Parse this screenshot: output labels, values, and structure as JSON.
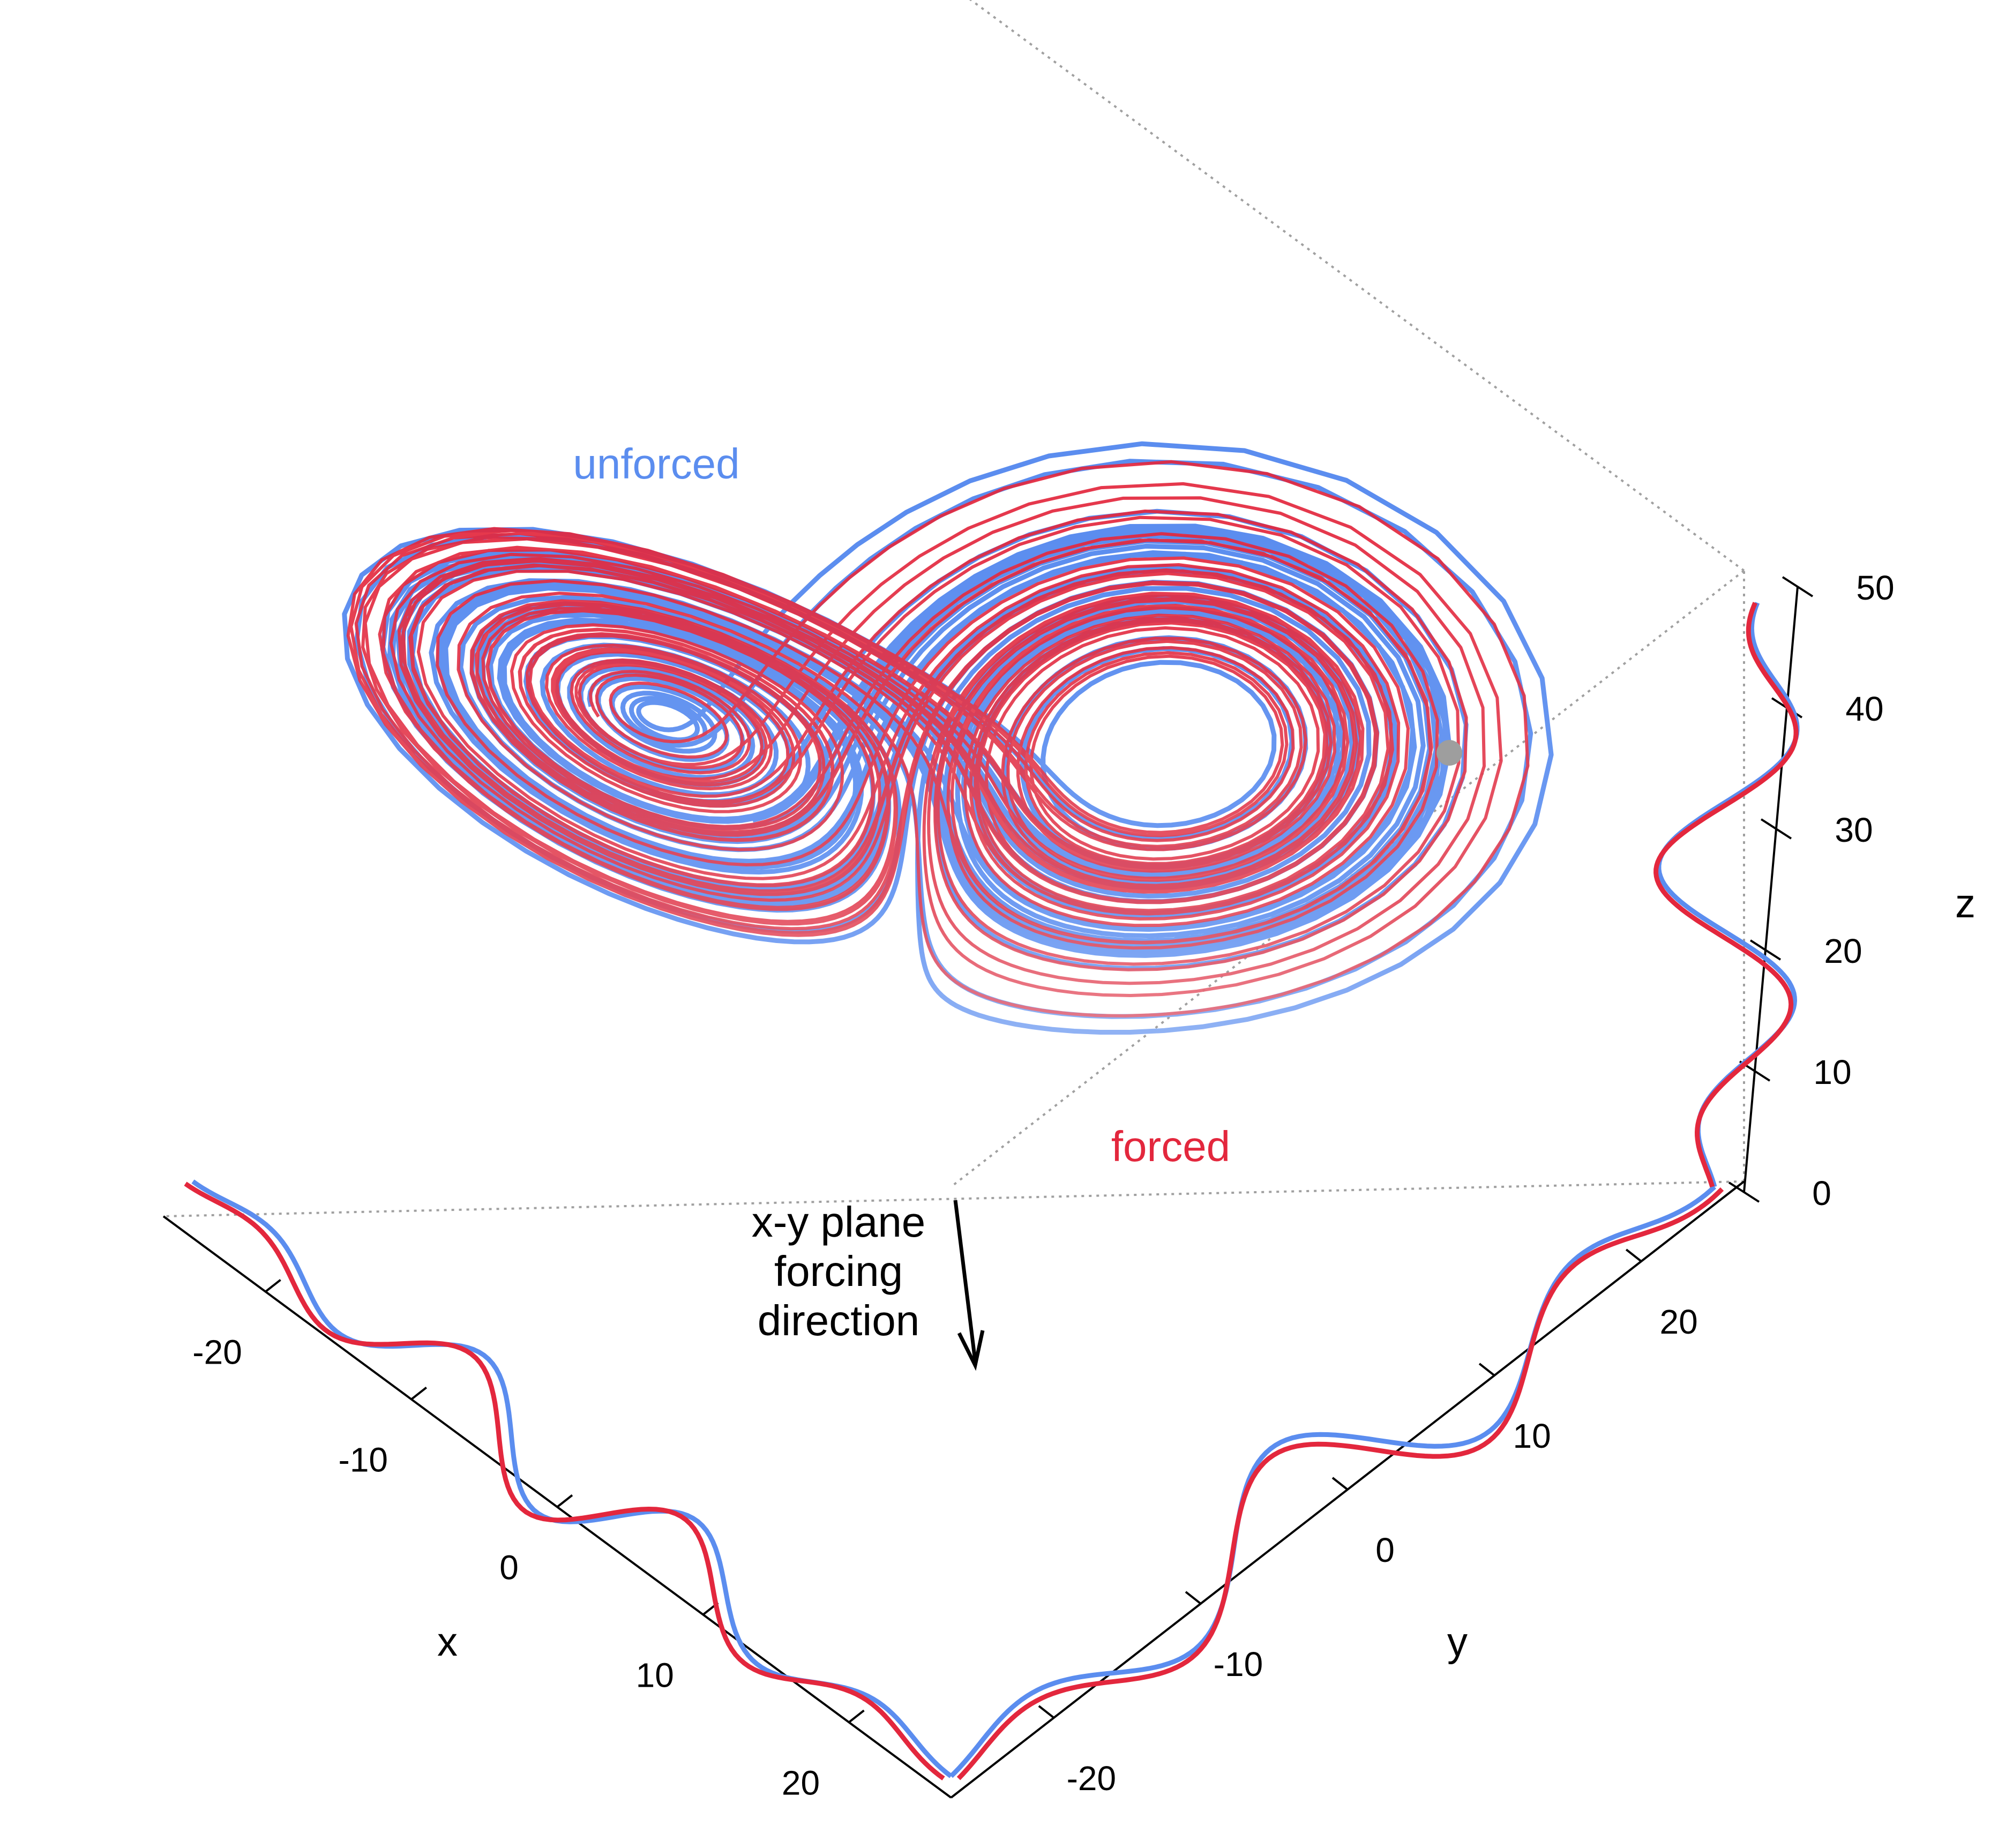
{
  "chart_data": {
    "type": "line",
    "projection": "3d",
    "title": "",
    "axes": {
      "x": {
        "label": "x",
        "ticks": [
          -20,
          -10,
          0,
          10,
          20
        ],
        "range": [
          -27,
          27
        ]
      },
      "y": {
        "label": "y",
        "ticks": [
          -20,
          -10,
          0,
          10,
          20
        ],
        "range": [
          -27,
          27
        ]
      },
      "z": {
        "label": "z",
        "ticks": [
          0,
          10,
          20,
          30,
          40,
          50
        ],
        "range": [
          0,
          50
        ]
      }
    },
    "series": [
      {
        "name": "unforced",
        "color": "#5b8def",
        "forced": false
      },
      {
        "name": "forced",
        "color": "#e3273d",
        "forced": true
      }
    ],
    "marker": {
      "label": "",
      "color": "#9e9e9e",
      "x": 1,
      "y": 8,
      "z": 42
    },
    "annotation": {
      "lines": [
        "x-y plane",
        "forcing",
        "direction"
      ],
      "arrow": "down"
    },
    "grid": false,
    "legend": "inline labels"
  }
}
